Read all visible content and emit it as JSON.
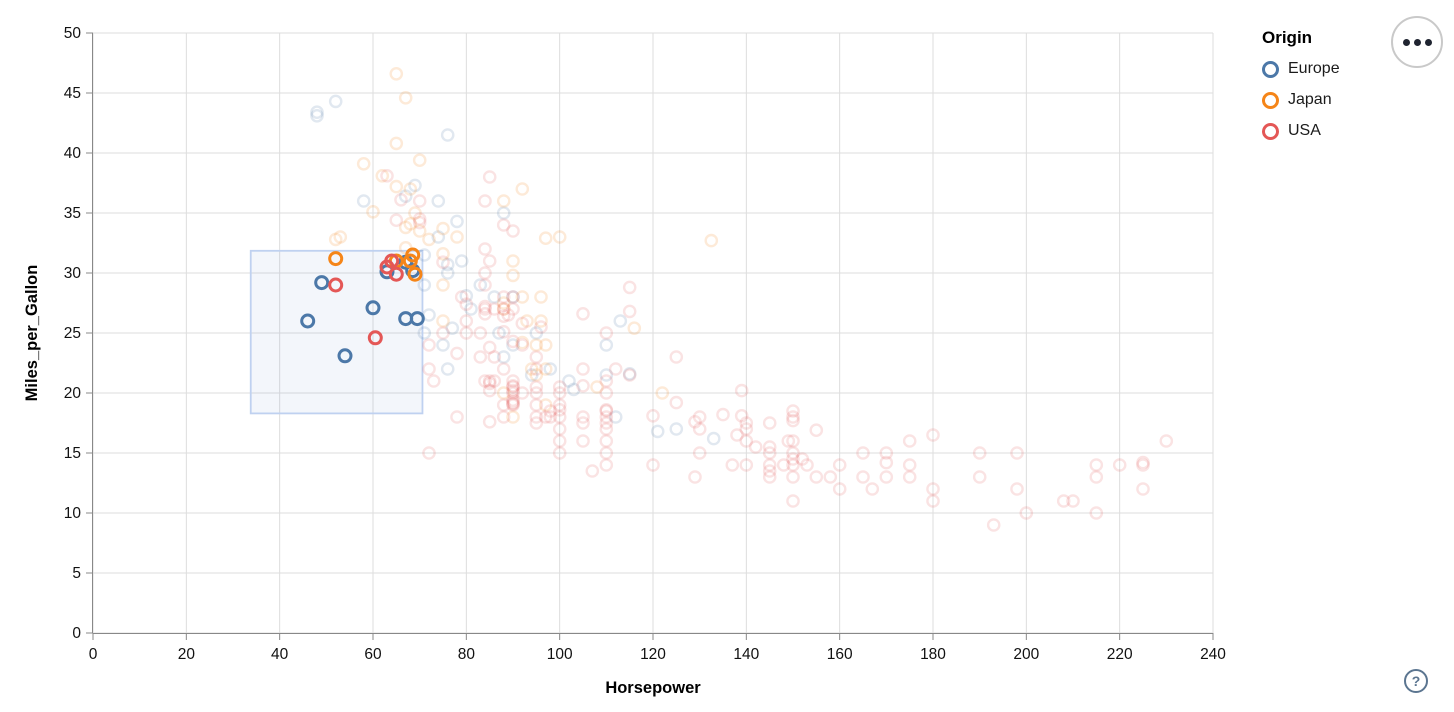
{
  "controls": {
    "menu_button": {
      "icon": "ellipsis-icon"
    },
    "help_button": {
      "label": "?",
      "color": "#5b7590"
    }
  },
  "chart_data": {
    "type": "scatter",
    "title": "",
    "xlabel": "Horsepower",
    "ylabel": "Miles_per_Gallon",
    "xlim": [
      0,
      240
    ],
    "ylim": [
      0,
      50
    ],
    "x_ticks": [
      0,
      20,
      40,
      60,
      80,
      100,
      120,
      140,
      160,
      180,
      200,
      220,
      240
    ],
    "y_ticks": [
      0,
      5,
      10,
      15,
      20,
      25,
      30,
      35,
      40,
      45,
      50
    ],
    "grid": true,
    "legend": {
      "title": "Origin",
      "position": "top-right",
      "entries": [
        {
          "label": "Europe",
          "color": "#4c78a8"
        },
        {
          "label": "Japan",
          "color": "#f58518"
        },
        {
          "label": "USA",
          "color": "#e45756"
        }
      ]
    },
    "brush": {
      "hp_range": [
        33.8,
        70.6
      ],
      "mpg_range": [
        18.3,
        31.85
      ],
      "fill": "rgba(105,140,210,0.08)",
      "stroke": "#bfd1f0"
    },
    "point_style": {
      "unselected_opacity": 0.17,
      "selected_opacity": 1
    },
    "series": [
      {
        "name": "Europe",
        "color": "#4c78a8",
        "points": [
          [
            46,
            26
          ],
          [
            49,
            29.2
          ],
          [
            54,
            23.1
          ],
          [
            60,
            27.1
          ],
          [
            63,
            30.1
          ],
          [
            67,
            26.2
          ],
          [
            69.5,
            26.2
          ],
          [
            67,
            30.9
          ],
          [
            68.5,
            30.2
          ],
          [
            48,
            43.1
          ],
          [
            48,
            43.4
          ],
          [
            52,
            44.3
          ],
          [
            76,
            41.5
          ],
          [
            88,
            35
          ],
          [
            78,
            34.3
          ],
          [
            58,
            36
          ],
          [
            69,
            37.3
          ],
          [
            67,
            36.4
          ],
          [
            74,
            33
          ],
          [
            74,
            36
          ],
          [
            71,
            31.5
          ],
          [
            76,
            30.7
          ],
          [
            80,
            28.1
          ],
          [
            77,
            25.4
          ],
          [
            83,
            29
          ],
          [
            76,
            30
          ],
          [
            87,
            25
          ],
          [
            90,
            24
          ],
          [
            95,
            25
          ],
          [
            113,
            26
          ],
          [
            90,
            28
          ],
          [
            76,
            22
          ],
          [
            112,
            18
          ],
          [
            98,
            22
          ],
          [
            110,
            24
          ],
          [
            125,
            17
          ],
          [
            110,
            21.5
          ],
          [
            103,
            20.3
          ],
          [
            133,
            16.2
          ],
          [
            115,
            21.6
          ],
          [
            81,
            27
          ],
          [
            88,
            23
          ],
          [
            72,
            26.5
          ],
          [
            86,
            28
          ],
          [
            79,
            31
          ],
          [
            75,
            24
          ],
          [
            71,
            29
          ],
          [
            121,
            16.8
          ],
          [
            94,
            21.5
          ],
          [
            102,
            21
          ],
          [
            71,
            25
          ]
        ]
      },
      {
        "name": "Japan",
        "color": "#f58518",
        "points": [
          [
            52,
            31.2
          ],
          [
            68.5,
            31.5
          ],
          [
            68,
            31
          ],
          [
            69,
            29.9
          ],
          [
            65,
            31
          ],
          [
            65,
            46.6
          ],
          [
            67,
            44.6
          ],
          [
            65,
            40.8
          ],
          [
            70,
            39.4
          ],
          [
            58,
            39.1
          ],
          [
            62,
            38.1
          ],
          [
            68,
            37
          ],
          [
            65,
            37.2
          ],
          [
            92,
            37
          ],
          [
            88,
            36
          ],
          [
            75,
            33.7
          ],
          [
            68,
            34.1
          ],
          [
            67,
            33.8
          ],
          [
            60,
            35.1
          ],
          [
            70,
            33.5
          ],
          [
            53,
            33
          ],
          [
            52,
            32.8
          ],
          [
            75,
            31.6
          ],
          [
            97,
            32.9
          ],
          [
            132.5,
            32.7
          ],
          [
            90,
            29.8
          ],
          [
            96,
            28
          ],
          [
            93,
            26
          ],
          [
            75,
            29
          ],
          [
            75,
            26
          ],
          [
            97,
            24
          ],
          [
            95,
            24
          ],
          [
            88,
            27
          ],
          [
            88,
            27.5
          ],
          [
            92,
            28
          ],
          [
            97,
            22
          ],
          [
            95,
            21.5
          ],
          [
            122,
            20
          ],
          [
            97,
            19
          ],
          [
            90,
            18
          ],
          [
            88,
            20
          ],
          [
            94,
            22
          ],
          [
            69,
            35
          ],
          [
            100,
            33
          ],
          [
            92,
            24.2
          ],
          [
            116,
            25.4
          ],
          [
            72,
            32.8
          ],
          [
            67,
            32.1
          ],
          [
            78,
            33
          ],
          [
            90,
            31
          ],
          [
            96,
            26
          ],
          [
            108,
            20.5
          ]
        ]
      },
      {
        "name": "USA",
        "color": "#e45756",
        "points": [
          [
            52,
            29
          ],
          [
            63,
            30.5
          ],
          [
            65,
            29.9
          ],
          [
            60.5,
            24.6
          ],
          [
            64,
            31
          ],
          [
            130,
            18
          ],
          [
            165,
            15
          ],
          [
            150,
            18
          ],
          [
            150,
            16
          ],
          [
            140,
            17
          ],
          [
            198,
            15
          ],
          [
            220,
            14
          ],
          [
            215,
            14
          ],
          [
            225,
            14
          ],
          [
            190,
            15
          ],
          [
            170,
            15
          ],
          [
            160,
            14
          ],
          [
            150,
            15
          ],
          [
            225,
            14.2
          ],
          [
            215,
            10
          ],
          [
            200,
            10
          ],
          [
            210,
            11
          ],
          [
            193,
            9
          ],
          [
            175,
            14
          ],
          [
            175,
            13
          ],
          [
            170,
            13
          ],
          [
            180,
            12
          ],
          [
            165,
            13
          ],
          [
            153,
            14
          ],
          [
            150,
            14
          ],
          [
            208,
            11
          ],
          [
            155,
            13
          ],
          [
            160,
            12
          ],
          [
            190,
            13
          ],
          [
            145,
            13
          ],
          [
            137,
            14
          ],
          [
            198,
            12
          ],
          [
            150,
            13
          ],
          [
            158,
            13
          ],
          [
            215,
            13
          ],
          [
            225,
            12
          ],
          [
            167,
            12
          ],
          [
            150,
            11
          ],
          [
            180,
            11
          ],
          [
            145,
            15
          ],
          [
            230,
            16
          ],
          [
            139,
            18.1
          ],
          [
            140,
            17.5
          ],
          [
            150,
            17.7
          ],
          [
            129,
            13
          ],
          [
            138,
            16.5
          ],
          [
            135,
            18.2
          ],
          [
            155,
            16.9
          ],
          [
            142,
            15.5
          ],
          [
            125,
            19.2
          ],
          [
            130,
            17
          ],
          [
            129,
            17.6
          ],
          [
            180,
            16.5
          ],
          [
            145,
            15.5
          ],
          [
            130,
            15
          ],
          [
            149,
            16
          ],
          [
            175,
            16
          ],
          [
            145,
            14
          ],
          [
            152,
            14.5
          ],
          [
            170,
            14.2
          ],
          [
            148,
            14
          ],
          [
            150,
            14.5
          ],
          [
            145,
            13.5
          ],
          [
            95,
            22
          ],
          [
            97,
            18
          ],
          [
            85,
            21
          ],
          [
            90,
            21
          ],
          [
            90,
            28
          ],
          [
            88,
            19
          ],
          [
            110,
            18
          ],
          [
            100,
            17
          ],
          [
            105,
            16
          ],
          [
            100,
            19
          ],
          [
            88,
            18
          ],
          [
            86,
            23
          ],
          [
            72,
            22
          ],
          [
            86,
            21
          ],
          [
            90,
            20
          ],
          [
            80,
            25
          ],
          [
            95,
            23
          ],
          [
            105,
            18
          ],
          [
            100,
            16
          ],
          [
            100,
            18
          ],
          [
            110,
            18.5
          ],
          [
            110,
            14
          ],
          [
            95,
            20
          ],
          [
            100,
            15
          ],
          [
            140,
            16
          ],
          [
            140,
            14
          ],
          [
            110,
            16
          ],
          [
            75,
            25
          ],
          [
            80,
            26
          ],
          [
            84,
            21
          ],
          [
            110,
            20
          ],
          [
            110,
            21
          ],
          [
            95,
            19
          ],
          [
            83,
            23
          ],
          [
            83,
            25
          ],
          [
            90,
            19
          ],
          [
            78,
            18
          ],
          [
            110,
            17
          ],
          [
            95,
            18
          ],
          [
            72,
            15
          ],
          [
            72,
            24
          ],
          [
            95,
            17.5
          ],
          [
            96,
            25.5
          ],
          [
            89,
            26.5
          ],
          [
            105,
            22
          ],
          [
            100,
            20
          ],
          [
            98,
            18.5
          ],
          [
            85,
            17.6
          ],
          [
            110,
            17.5
          ],
          [
            105,
            17.5
          ],
          [
            98,
            18
          ],
          [
            145,
            17.5
          ],
          [
            95,
            20.5
          ],
          [
            85,
            20.2
          ],
          [
            88,
            25.1
          ],
          [
            100,
            20.5
          ],
          [
            90,
            19.4
          ],
          [
            105,
            20.6
          ],
          [
            85,
            20.8
          ],
          [
            110,
            18.6
          ],
          [
            120,
            18.1
          ],
          [
            75,
            30.9
          ],
          [
            66,
            36.1
          ],
          [
            85,
            23.8
          ],
          [
            90,
            19.2
          ],
          [
            139,
            20.2
          ],
          [
            115,
            21.5
          ],
          [
            80,
            27.4
          ],
          [
            125,
            23
          ],
          [
            150,
            18.5
          ],
          [
            70,
            34.2
          ],
          [
            70,
            34.5
          ],
          [
            90,
            20.6
          ],
          [
            90,
            20.2
          ],
          [
            90,
            20.5
          ],
          [
            115,
            28.8
          ],
          [
            115,
            26.8
          ],
          [
            90,
            33.5
          ],
          [
            88,
            26.4
          ],
          [
            90,
            24.3
          ],
          [
            90,
            19.1
          ],
          [
            84,
            27.2
          ],
          [
            92,
            25.8
          ],
          [
            84,
            30
          ],
          [
            84,
            26.6
          ],
          [
            92,
            24
          ],
          [
            88,
            22
          ],
          [
            88,
            28
          ],
          [
            88,
            27
          ],
          [
            88,
            34
          ],
          [
            85,
            31
          ],
          [
            84,
            29
          ],
          [
            84,
            27
          ],
          [
            90,
            27
          ],
          [
            86,
            27
          ],
          [
            84,
            36
          ],
          [
            79,
            28
          ],
          [
            110,
            25
          ],
          [
            85,
            38
          ],
          [
            84,
            32
          ],
          [
            63,
            38.1
          ],
          [
            70,
            36
          ],
          [
            65,
            34.4
          ],
          [
            112,
            22
          ],
          [
            105,
            26.6
          ],
          [
            100,
            18.6
          ],
          [
            92,
            20
          ],
          [
            110,
            15
          ],
          [
            120,
            14
          ],
          [
            107,
            13.5
          ],
          [
            73,
            21
          ],
          [
            78,
            23.3
          ]
        ]
      }
    ]
  }
}
